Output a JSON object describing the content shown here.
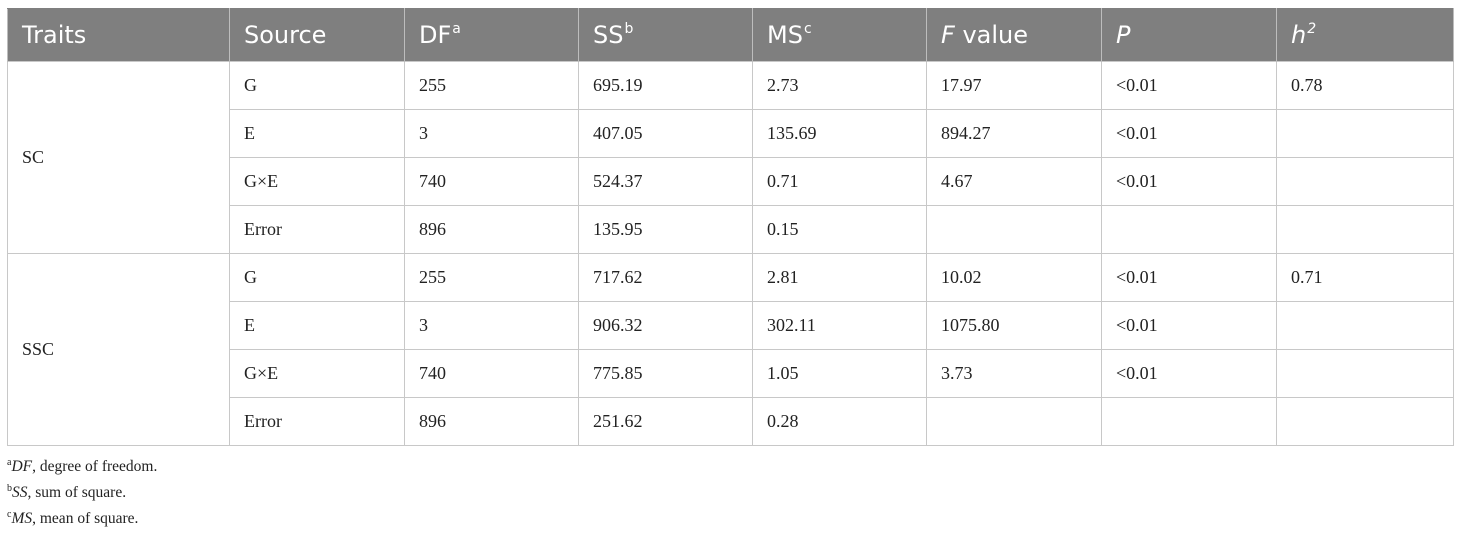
{
  "table": {
    "headers": [
      {
        "label": "Traits",
        "sup": "",
        "italic": false
      },
      {
        "label": "Source",
        "sup": "",
        "italic": false
      },
      {
        "label": "DF",
        "sup": "a",
        "italic": false
      },
      {
        "label": "SS",
        "sup": "b",
        "italic": false
      },
      {
        "label": "MS",
        "sup": "c",
        "italic": false
      },
      {
        "label": "F",
        "suffix": " value",
        "italic": true
      },
      {
        "label": "P",
        "sup": "",
        "italic": true
      },
      {
        "label": "h",
        "sup": "2",
        "italic": true
      }
    ],
    "groups": [
      {
        "trait": "SC",
        "rows": [
          [
            "G",
            "255",
            "695.19",
            "2.73",
            "17.97",
            "<0.01",
            "0.78"
          ],
          [
            "E",
            "3",
            "407.05",
            "135.69",
            "894.27",
            "<0.01",
            ""
          ],
          [
            "G×E",
            "740",
            "524.37",
            "0.71",
            "4.67",
            "<0.01",
            ""
          ],
          [
            "Error",
            "896",
            "135.95",
            "0.15",
            "",
            "",
            ""
          ]
        ]
      },
      {
        "trait": "SSC",
        "rows": [
          [
            "G",
            "255",
            "717.62",
            "2.81",
            "10.02",
            "<0.01",
            "0.71"
          ],
          [
            "E",
            "3",
            "906.32",
            "302.11",
            "1075.80",
            "<0.01",
            ""
          ],
          [
            "G×E",
            "740",
            "775.85",
            "1.05",
            "3.73",
            "<0.01",
            ""
          ],
          [
            "Error",
            "896",
            "251.62",
            "0.28",
            "",
            "",
            ""
          ]
        ]
      }
    ]
  },
  "footnotes": [
    {
      "mark": "a",
      "abbr": "DF",
      "text": ", degree of freedom."
    },
    {
      "mark": "b",
      "abbr": "SS",
      "text": ", sum of square."
    },
    {
      "mark": "c",
      "abbr": "MS",
      "text": ", mean of square."
    }
  ],
  "colors": {
    "header_bg": "#7f7f7f",
    "header_text": "#ffffff",
    "grid_line": "#c8c8c8"
  }
}
